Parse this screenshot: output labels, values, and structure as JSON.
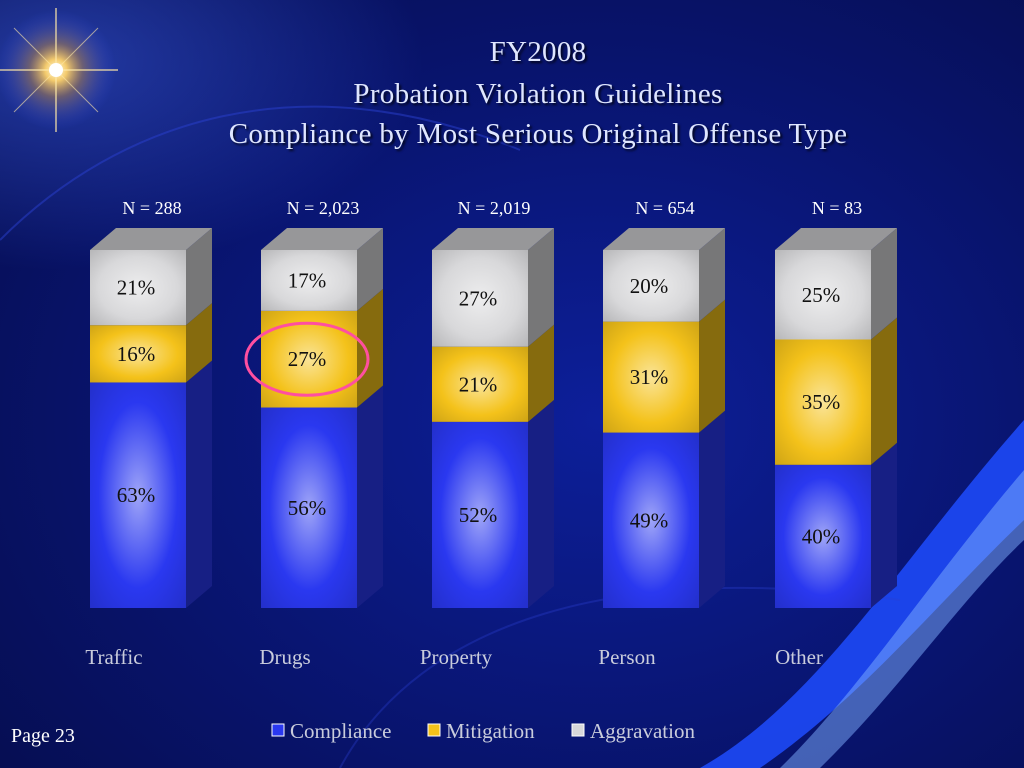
{
  "slide": {
    "title_lines": [
      "FY2008",
      "Probation Violation Guidelines",
      "Compliance by Most Serious Original Offense Type"
    ],
    "page_label": "Page 23"
  },
  "colors": {
    "compliance": "#2a38f0",
    "mitigation": "#f4c21a",
    "aggravation": "#d8d8da",
    "text_light": "#ffffff",
    "circle": "#ff4fa0"
  },
  "chart_data": {
    "type": "bar",
    "stacked": true,
    "style": "3d-column",
    "categories": [
      "Traffic",
      "Drugs",
      "Property",
      "Person",
      "Other"
    ],
    "n_labels": [
      "N = 288",
      "N = 2,023",
      "N = 2,019",
      "N = 654",
      "N = 83"
    ],
    "series": [
      {
        "name": "Compliance",
        "values": [
          63,
          56,
          52,
          49,
          40
        ],
        "labels": [
          "63%",
          "56%",
          "52%",
          "49%",
          "40%"
        ]
      },
      {
        "name": "Mitigation",
        "values": [
          16,
          27,
          21,
          31,
          35
        ],
        "labels": [
          "16%",
          "27%",
          "21%",
          "31%",
          "35%"
        ]
      },
      {
        "name": "Aggravation",
        "values": [
          21,
          17,
          27,
          20,
          25
        ],
        "labels": [
          "21%",
          "17%",
          "27%",
          "20%",
          "25%"
        ]
      }
    ],
    "ylim": [
      0,
      100
    ],
    "grid": false,
    "legend_position": "bottom",
    "highlight": {
      "category": "Drugs",
      "series": "Mitigation",
      "shape": "ellipse"
    }
  }
}
